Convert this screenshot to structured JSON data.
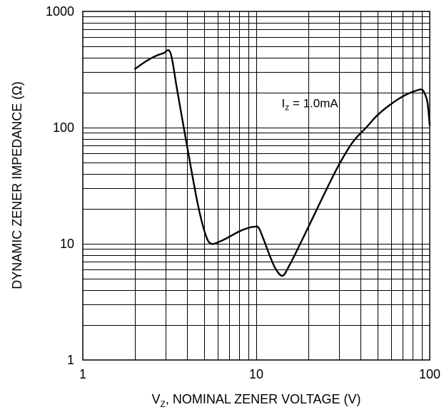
{
  "chart_data": {
    "type": "line",
    "x_scale": "log",
    "y_scale": "log",
    "xlim": [
      1,
      100
    ],
    "ylim": [
      1,
      1000
    ],
    "grid": true,
    "x_ticks": [
      "1",
      "10",
      "100"
    ],
    "y_ticks": [
      "1",
      "10",
      "100",
      "1000"
    ],
    "xlabel": {
      "main": "V",
      "sub": "Z",
      "rest": ", NOMINAL ZENER VOLTAGE (V)"
    },
    "ylabel": "DYNAMIC ZENER IMPEDANCE (Ω)",
    "annotation": {
      "main": "I",
      "sub": "z",
      "rest": " = 1.0mA"
    },
    "annotation_at": {
      "x": 14,
      "y": 150
    },
    "series": [
      {
        "name": "",
        "x": [
          2.0,
          2.3,
          2.6,
          2.9,
          3.2,
          3.5,
          4.0,
          4.6,
          5.1,
          5.5,
          6.2,
          7.0,
          8.0,
          9.0,
          9.7,
          10.3,
          11.0,
          12.0,
          13.0,
          14.2,
          15.5,
          17.0,
          20.0,
          25.0,
          30.0,
          36.0,
          43.0,
          50.0,
          60.0,
          72.0,
          85.0,
          90.0,
          93.0,
          97.0,
          100.0
        ],
        "y": [
          320,
          370,
          410,
          435,
          440,
          210,
          68,
          22,
          12,
          10,
          10.5,
          11.5,
          12.8,
          13.7,
          14,
          13.8,
          11,
          7.8,
          6.0,
          5.3,
          6.5,
          8.5,
          14,
          28,
          48,
          75,
          100,
          128,
          160,
          190,
          210,
          212,
          200,
          165,
          105
        ]
      }
    ]
  }
}
